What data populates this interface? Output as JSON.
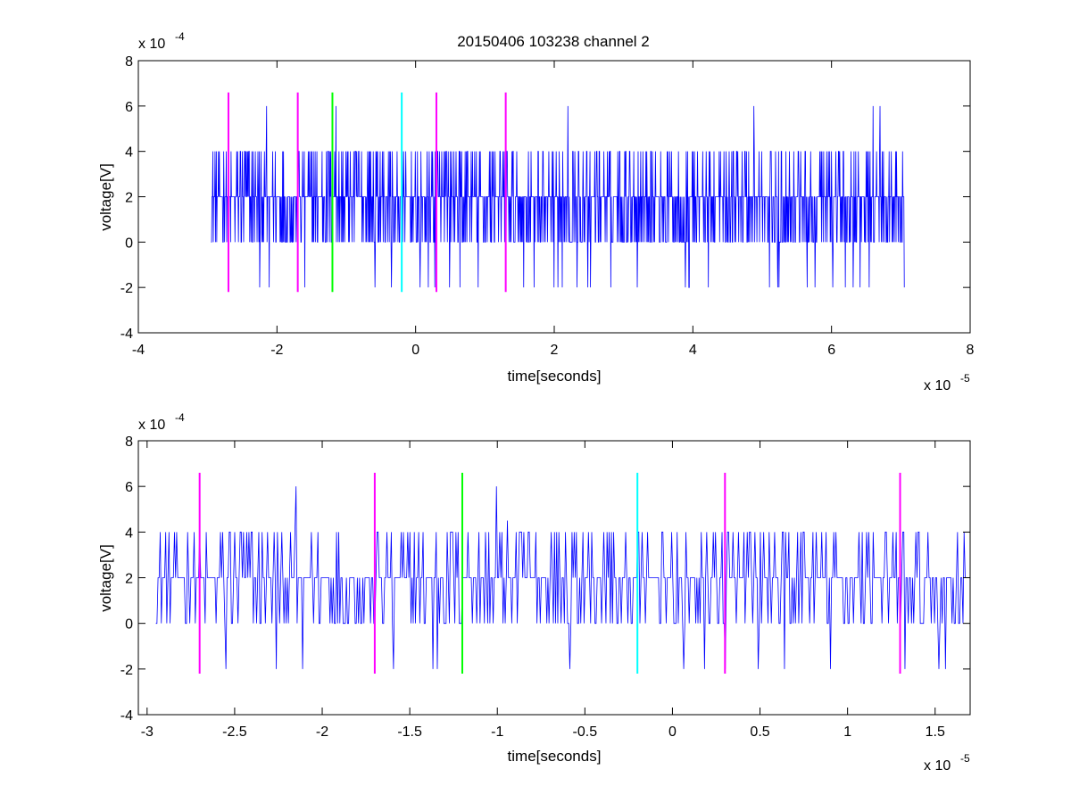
{
  "figure": {
    "title": "20150406 103238 channel 2",
    "colors": {
      "signal": "#0000ff",
      "magenta": "#ff00ff",
      "green": "#00ff00",
      "cyan": "#00ffff",
      "axes": "#000000"
    }
  },
  "chart_data": [
    {
      "type": "line",
      "title": "20150406 103238 channel 2",
      "xlabel": "time[seconds]",
      "ylabel": "voltage[V]",
      "x_exponent": "x 10",
      "x_exponent_power": "-5",
      "y_exponent": "x 10",
      "y_exponent_power": "-4",
      "xlim": [
        -4,
        8
      ],
      "ylim": [
        -4,
        8
      ],
      "xticks": [
        -4,
        -2,
        0,
        2,
        4,
        6,
        8
      ],
      "yticks": [
        -4,
        -2,
        0,
        2,
        4,
        6,
        8
      ],
      "xtick_labels": [
        "-4",
        "-2",
        "0",
        "2",
        "4",
        "6",
        "8"
      ],
      "ytick_labels": [
        "-4",
        "-2",
        "0",
        "2",
        "4",
        "6",
        "8"
      ],
      "grid": false,
      "signal": {
        "x_start": -2.95,
        "x_end": 7.05,
        "quantization_step": 2,
        "typical_values": [
          0,
          2,
          4
        ],
        "occasional_min": -2,
        "peaks": [
          {
            "x": -2.15,
            "y": 6
          },
          {
            "x": -1.15,
            "y": 6
          },
          {
            "x": 2.2,
            "y": 6
          },
          {
            "x": 4.88,
            "y": 6
          },
          {
            "x": 6.6,
            "y": 6
          },
          {
            "x": 6.7,
            "y": 6
          }
        ],
        "troughs": [
          {
            "x": -2.25,
            "y": -2
          },
          {
            "x": -1.6,
            "y": -2
          },
          {
            "x": -0.35,
            "y": -2
          },
          {
            "x": 0.28,
            "y": -2
          },
          {
            "x": 0.9,
            "y": -2
          },
          {
            "x": 1.3,
            "y": -2
          },
          {
            "x": 3.2,
            "y": -2
          },
          {
            "x": 3.95,
            "y": -2
          },
          {
            "x": 5.65,
            "y": -2
          },
          {
            "x": 6.2,
            "y": -2
          },
          {
            "x": 7.05,
            "y": -2
          }
        ]
      },
      "markers": [
        {
          "x": -2.7,
          "y_range": [
            -2.2,
            6.6
          ],
          "color": "magenta"
        },
        {
          "x": -1.7,
          "y_range": [
            -2.2,
            6.6
          ],
          "color": "magenta"
        },
        {
          "x": -1.2,
          "y_range": [
            -2.2,
            6.6
          ],
          "color": "green"
        },
        {
          "x": -0.2,
          "y_range": [
            -2.2,
            6.6
          ],
          "color": "cyan"
        },
        {
          "x": 0.3,
          "y_range": [
            -2.2,
            6.6
          ],
          "color": "magenta"
        },
        {
          "x": 1.3,
          "y_range": [
            -2.2,
            6.6
          ],
          "color": "magenta"
        }
      ]
    },
    {
      "type": "line",
      "title": "",
      "xlabel": "time[seconds]",
      "ylabel": "voltage[V]",
      "x_exponent": "x 10",
      "x_exponent_power": "-5",
      "y_exponent": "x 10",
      "y_exponent_power": "-4",
      "xlim": [
        -3.05,
        1.7
      ],
      "ylim": [
        -4,
        8
      ],
      "xticks": [
        -3,
        -2.5,
        -2,
        -1.5,
        -1,
        -0.5,
        0,
        0.5,
        1,
        1.5
      ],
      "yticks": [
        -4,
        -2,
        0,
        2,
        4,
        6,
        8
      ],
      "xtick_labels": [
        "-3",
        "-2.5",
        "-2",
        "-1.5",
        "-1",
        "-0.5",
        "0",
        "0.5",
        "1",
        "1.5"
      ],
      "ytick_labels": [
        "-4",
        "-2",
        "0",
        "2",
        "4",
        "6",
        "8"
      ],
      "grid": false,
      "signal": {
        "x_start": -2.95,
        "x_end": 1.7,
        "quantization_step": 2,
        "typical_values": [
          0,
          2,
          4
        ],
        "occasional_min": -2,
        "peaks": [
          {
            "x": -2.15,
            "y": 6
          },
          {
            "x": -1.005,
            "y": 6
          },
          {
            "x": -0.945,
            "y": 4.5
          },
          {
            "x": -0.055,
            "y": 4
          }
        ],
        "troughs": [
          {
            "x": -2.55,
            "y": -2
          },
          {
            "x": -2.26,
            "y": -2
          },
          {
            "x": -1.59,
            "y": -2
          },
          {
            "x": -1.37,
            "y": -2
          },
          {
            "x": -1.34,
            "y": -2
          },
          {
            "x": 0.3,
            "y": -2
          },
          {
            "x": 0.9,
            "y": -2
          },
          {
            "x": 1.33,
            "y": -2
          },
          {
            "x": 1.52,
            "y": -2
          }
        ]
      },
      "markers": [
        {
          "x": -2.7,
          "y_range": [
            -2.2,
            6.6
          ],
          "color": "magenta"
        },
        {
          "x": -1.7,
          "y_range": [
            -2.2,
            6.6
          ],
          "color": "magenta"
        },
        {
          "x": -1.2,
          "y_range": [
            -2.2,
            6.6
          ],
          "color": "green"
        },
        {
          "x": -0.2,
          "y_range": [
            -2.2,
            6.6
          ],
          "color": "cyan"
        },
        {
          "x": 0.3,
          "y_range": [
            -2.2,
            6.6
          ],
          "color": "magenta"
        },
        {
          "x": 1.3,
          "y_range": [
            -2.2,
            6.6
          ],
          "color": "magenta"
        }
      ]
    }
  ]
}
